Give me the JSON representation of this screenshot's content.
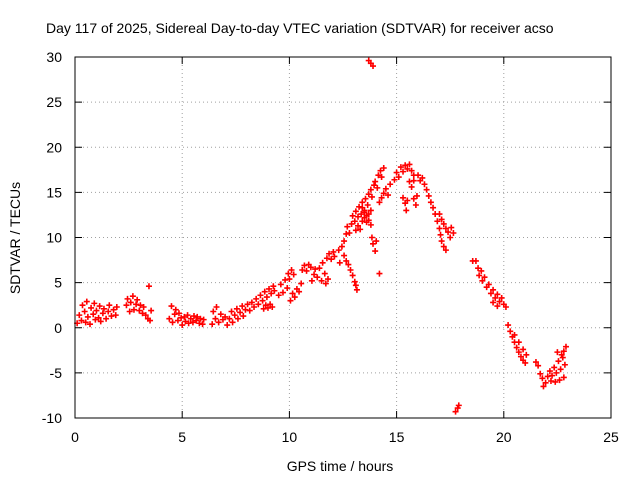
{
  "colors": {
    "series": "#ff0000",
    "grid": "#a0a0a0",
    "axis": "#000000",
    "background": "#ffffff"
  },
  "chart_data": {
    "type": "scatter",
    "title": "Day 117 of 2025, Sidereal Day-to-day VTEC variation (SDTVAR) for receiver acso",
    "xlabel": "GPS time / hours",
    "ylabel": "SDTVAR / TECUs",
    "xlim": [
      0,
      25
    ],
    "ylim": [
      -10,
      30
    ],
    "xticks": [
      0,
      5,
      10,
      15,
      20,
      25
    ],
    "yticks": [
      -10,
      -5,
      0,
      5,
      10,
      15,
      20,
      25,
      30
    ],
    "xtick_labels": [
      "0",
      "5",
      "10",
      "15",
      "20",
      "25"
    ],
    "ytick_labels": [
      "-10",
      "-5",
      "0",
      "5",
      "10",
      "15",
      "20",
      "25",
      "30"
    ],
    "grid": true,
    "marker": "+",
    "series": [
      {
        "name": "SDTVAR",
        "color": "#ff0000",
        "points": [
          [
            0.1,
            0.5
          ],
          [
            0.2,
            1.4
          ],
          [
            0.3,
            0.8
          ],
          [
            0.35,
            2.5
          ],
          [
            0.45,
            1.8
          ],
          [
            0.5,
            0.6
          ],
          [
            0.55,
            2.9
          ],
          [
            0.6,
            1.2
          ],
          [
            0.7,
            0.4
          ],
          [
            0.75,
            2.2
          ],
          [
            0.85,
            1.5
          ],
          [
            0.9,
            2.7
          ],
          [
            0.95,
            0.9
          ],
          [
            1.0,
            1.9
          ],
          [
            1.1,
            1.1
          ],
          [
            1.15,
            2.4
          ],
          [
            1.2,
            0.7
          ],
          [
            1.3,
            1.6
          ],
          [
            1.35,
            2.1
          ],
          [
            1.45,
            1.0
          ],
          [
            1.55,
            1.8
          ],
          [
            1.6,
            2.5
          ],
          [
            1.7,
            1.3
          ],
          [
            1.8,
            2.0
          ],
          [
            1.9,
            1.4
          ],
          [
            1.95,
            2.3
          ],
          [
            2.4,
            2.5
          ],
          [
            2.45,
            3.2
          ],
          [
            2.55,
            1.8
          ],
          [
            2.6,
            2.8
          ],
          [
            2.7,
            3.5
          ],
          [
            2.75,
            2.0
          ],
          [
            2.85,
            2.6
          ],
          [
            2.9,
            3.1
          ],
          [
            3.0,
            1.9
          ],
          [
            3.05,
            2.5
          ],
          [
            3.15,
            1.6
          ],
          [
            3.2,
            2.3
          ],
          [
            3.3,
            1.4
          ],
          [
            3.4,
            1.0
          ],
          [
            3.45,
            4.6
          ],
          [
            3.5,
            0.8
          ],
          [
            3.55,
            1.9
          ],
          [
            4.4,
            1.0
          ],
          [
            4.5,
            2.4
          ],
          [
            4.55,
            0.6
          ],
          [
            4.65,
            1.5
          ],
          [
            4.7,
            2.0
          ],
          [
            4.8,
            0.8
          ],
          [
            4.85,
            1.6
          ],
          [
            4.95,
            1.1
          ],
          [
            5.0,
            0.3
          ],
          [
            5.1,
            1.2
          ],
          [
            5.15,
            0.7
          ],
          [
            5.25,
            1.4
          ],
          [
            5.3,
            0.5
          ],
          [
            5.4,
            1.0
          ],
          [
            5.5,
            0.6
          ],
          [
            5.55,
            1.3
          ],
          [
            5.65,
            0.8
          ],
          [
            5.7,
            1.2
          ],
          [
            5.8,
            0.5
          ],
          [
            5.85,
            1.0
          ],
          [
            5.95,
            0.4
          ],
          [
            6.0,
            0.9
          ],
          [
            6.4,
            0.4
          ],
          [
            6.45,
            1.8
          ],
          [
            6.55,
            1.0
          ],
          [
            6.6,
            2.3
          ],
          [
            6.7,
            0.6
          ],
          [
            6.8,
            1.5
          ],
          [
            6.9,
            0.9
          ],
          [
            7.0,
            1.2
          ],
          [
            7.1,
            0.3
          ],
          [
            7.2,
            1.0
          ],
          [
            7.3,
            1.8
          ],
          [
            7.35,
            0.6
          ],
          [
            7.45,
            1.4
          ],
          [
            7.55,
            2.1
          ],
          [
            7.6,
            1.0
          ],
          [
            7.7,
            1.7
          ],
          [
            7.8,
            2.4
          ],
          [
            7.85,
            1.3
          ],
          [
            7.95,
            2.0
          ],
          [
            8.05,
            2.6
          ],
          [
            8.15,
            1.9
          ],
          [
            8.25,
            2.8
          ],
          [
            8.35,
            2.3
          ],
          [
            8.45,
            3.2
          ],
          [
            8.55,
            2.6
          ],
          [
            8.65,
            3.6
          ],
          [
            8.75,
            3.0
          ],
          [
            8.85,
            4.0
          ],
          [
            8.95,
            3.4
          ],
          [
            9.05,
            4.3
          ],
          [
            9.15,
            3.8
          ],
          [
            9.25,
            4.6
          ],
          [
            9.3,
            4.1
          ],
          [
            8.8,
            2.1
          ],
          [
            8.9,
            2.5
          ],
          [
            9.0,
            2.2
          ],
          [
            9.1,
            2.6
          ],
          [
            9.2,
            2.3
          ],
          [
            9.5,
            3.6
          ],
          [
            9.6,
            4.8
          ],
          [
            9.7,
            3.9
          ],
          [
            9.8,
            5.3
          ],
          [
            9.9,
            4.4
          ],
          [
            9.95,
            6.0
          ],
          [
            10.0,
            5.4
          ],
          [
            10.1,
            6.4
          ],
          [
            10.2,
            5.9
          ],
          [
            10.05,
            3.0
          ],
          [
            10.15,
            3.8
          ],
          [
            10.25,
            3.4
          ],
          [
            10.35,
            4.3
          ],
          [
            10.45,
            4.0
          ],
          [
            10.55,
            4.9
          ],
          [
            10.6,
            6.4
          ],
          [
            10.7,
            6.9
          ],
          [
            10.8,
            6.3
          ],
          [
            10.9,
            7.0
          ],
          [
            11.0,
            6.7
          ],
          [
            11.05,
            5.2
          ],
          [
            11.15,
            5.9
          ],
          [
            11.2,
            6.5
          ],
          [
            11.3,
            5.6
          ],
          [
            11.4,
            6.6
          ],
          [
            11.5,
            5.2
          ],
          [
            11.55,
            7.2
          ],
          [
            11.65,
            6.0
          ],
          [
            11.75,
            7.7
          ],
          [
            11.85,
            8.2
          ],
          [
            11.95,
            7.6
          ],
          [
            12.05,
            8.4
          ],
          [
            12.1,
            7.9
          ],
          [
            11.7,
            4.9
          ],
          [
            11.8,
            5.4
          ],
          [
            12.3,
            8.6
          ],
          [
            12.35,
            7.2
          ],
          [
            12.45,
            9.0
          ],
          [
            12.55,
            8.0
          ],
          [
            12.65,
            7.4
          ],
          [
            12.75,
            7.0
          ],
          [
            12.85,
            6.4
          ],
          [
            12.95,
            5.8
          ],
          [
            13.05,
            5.1
          ],
          [
            13.1,
            4.7
          ],
          [
            13.15,
            4.2
          ],
          [
            12.55,
            9.6
          ],
          [
            12.65,
            10.4
          ],
          [
            12.7,
            11.2
          ],
          [
            12.8,
            10.5
          ],
          [
            12.9,
            11.5
          ],
          [
            12.95,
            12.4
          ],
          [
            13.05,
            11.8
          ],
          [
            13.1,
            12.9
          ],
          [
            13.2,
            12.3
          ],
          [
            13.25,
            13.4
          ],
          [
            13.35,
            12.6
          ],
          [
            13.4,
            13.9
          ],
          [
            13.5,
            13.0
          ],
          [
            13.55,
            14.3
          ],
          [
            13.65,
            13.6
          ],
          [
            13.7,
            14.8
          ],
          [
            13.8,
            15.3
          ],
          [
            13.85,
            14.5
          ],
          [
            13.95,
            15.8
          ],
          [
            14.0,
            16.2
          ],
          [
            14.1,
            15.5
          ],
          [
            14.15,
            16.9
          ],
          [
            14.25,
            17.4
          ],
          [
            14.3,
            16.7
          ],
          [
            14.4,
            17.7
          ],
          [
            13.1,
            10.8
          ],
          [
            13.2,
            11.3
          ],
          [
            13.3,
            10.9
          ],
          [
            13.4,
            11.8
          ],
          [
            13.5,
            12.2
          ],
          [
            13.6,
            11.7
          ],
          [
            13.7,
            12.6
          ],
          [
            13.8,
            13.0
          ],
          [
            13.85,
            10.0
          ],
          [
            13.9,
            9.3
          ],
          [
            14.0,
            8.5
          ],
          [
            14.05,
            9.6
          ],
          [
            14.2,
            13.9
          ],
          [
            14.3,
            14.4
          ],
          [
            14.4,
            14.9
          ],
          [
            14.5,
            15.4
          ],
          [
            14.6,
            14.7
          ],
          [
            14.7,
            15.9
          ],
          [
            13.4,
            13.3
          ],
          [
            13.5,
            12.8
          ],
          [
            13.6,
            12.4
          ],
          [
            13.7,
            11.9
          ],
          [
            13.8,
            11.4
          ],
          [
            14.9,
            16.4
          ],
          [
            15.0,
            17.2
          ],
          [
            15.1,
            16.7
          ],
          [
            15.2,
            17.8
          ],
          [
            15.3,
            17.3
          ],
          [
            15.4,
            18.0
          ],
          [
            15.5,
            17.6
          ],
          [
            15.6,
            18.1
          ],
          [
            15.7,
            17.4
          ],
          [
            15.8,
            16.9
          ],
          [
            15.6,
            16.2
          ],
          [
            15.7,
            15.6
          ],
          [
            15.8,
            16.3
          ],
          [
            15.3,
            14.4
          ],
          [
            15.4,
            13.8
          ],
          [
            15.45,
            13.0
          ],
          [
            15.5,
            14.1
          ],
          [
            15.8,
            14.3
          ],
          [
            15.9,
            13.6
          ],
          [
            15.95,
            14.6
          ],
          [
            16.0,
            16.9
          ],
          [
            16.1,
            16.3
          ],
          [
            16.2,
            16.6
          ],
          [
            16.3,
            15.9
          ],
          [
            16.4,
            15.3
          ],
          [
            16.5,
            14.6
          ],
          [
            16.6,
            13.9
          ],
          [
            16.7,
            13.3
          ],
          [
            16.8,
            12.6
          ],
          [
            16.9,
            11.8
          ],
          [
            17.0,
            11.0
          ],
          [
            17.05,
            10.3
          ],
          [
            17.1,
            9.6
          ],
          [
            17.2,
            9.0
          ],
          [
            17.3,
            8.6
          ],
          [
            17.0,
            12.6
          ],
          [
            17.1,
            12.0
          ],
          [
            17.2,
            11.5
          ],
          [
            17.3,
            11.0
          ],
          [
            17.4,
            10.6
          ],
          [
            17.5,
            10.0
          ],
          [
            17.55,
            11.1
          ],
          [
            17.65,
            10.5
          ],
          [
            14.2,
            6.0
          ],
          [
            13.8,
            29.3
          ],
          [
            13.7,
            29.6
          ],
          [
            13.9,
            29.0
          ],
          [
            18.7,
            7.4
          ],
          [
            18.8,
            6.6
          ],
          [
            18.85,
            5.8
          ],
          [
            18.95,
            6.3
          ],
          [
            19.0,
            5.2
          ],
          [
            19.1,
            5.6
          ],
          [
            19.2,
            4.5
          ],
          [
            19.3,
            4.8
          ],
          [
            19.4,
            3.8
          ],
          [
            19.5,
            4.2
          ],
          [
            19.6,
            3.3
          ],
          [
            19.7,
            3.7
          ],
          [
            19.8,
            2.9
          ],
          [
            19.9,
            3.3
          ],
          [
            20.0,
            2.6
          ],
          [
            20.1,
            2.3
          ],
          [
            19.5,
            2.8
          ],
          [
            19.7,
            2.4
          ],
          [
            20.2,
            0.3
          ],
          [
            20.3,
            -0.4
          ],
          [
            20.4,
            -1.0
          ],
          [
            20.5,
            -1.6
          ],
          [
            20.6,
            -2.2
          ],
          [
            20.7,
            -2.7
          ],
          [
            20.8,
            -3.2
          ],
          [
            20.9,
            -3.6
          ],
          [
            21.0,
            -3.9
          ],
          [
            20.5,
            -0.8
          ],
          [
            20.7,
            -1.6
          ],
          [
            20.9,
            -2.4
          ],
          [
            21.05,
            -3.0
          ],
          [
            21.5,
            -3.8
          ],
          [
            21.6,
            -4.2
          ],
          [
            21.7,
            -5.1
          ],
          [
            21.8,
            -5.6
          ],
          [
            21.85,
            -6.5
          ],
          [
            21.95,
            -6.1
          ],
          [
            22.05,
            -5.4
          ],
          [
            22.15,
            -4.8
          ],
          [
            22.25,
            -5.3
          ],
          [
            22.35,
            -4.4
          ],
          [
            22.45,
            -5.0
          ],
          [
            22.55,
            -3.7
          ],
          [
            22.65,
            -4.6
          ],
          [
            22.75,
            -3.3
          ],
          [
            22.8,
            -2.6
          ],
          [
            22.85,
            -4.1
          ],
          [
            22.9,
            -2.1
          ],
          [
            22.8,
            -5.5
          ],
          [
            22.6,
            -5.8
          ],
          [
            22.4,
            -6.0
          ],
          [
            22.2,
            -5.9
          ],
          [
            22.7,
            -3.0
          ],
          [
            22.5,
            -2.7
          ],
          [
            17.75,
            -9.3
          ],
          [
            17.85,
            -8.9
          ],
          [
            17.9,
            -8.6
          ],
          [
            18.55,
            7.4
          ]
        ]
      }
    ]
  }
}
